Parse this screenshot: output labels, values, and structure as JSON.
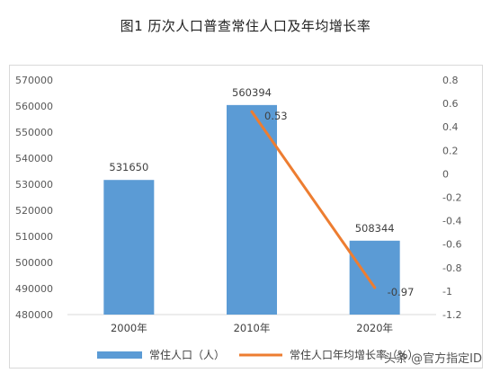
{
  "title": "图1  历次人口普查常住人口及年均增长率",
  "watermark": "头条 @官方指定ID",
  "chart_data": {
    "type": "bar",
    "categories": [
      "2000年",
      "2010年",
      "2020年"
    ],
    "series": [
      {
        "name": "常住人口（人）",
        "type": "bar",
        "axis": "left",
        "values": [
          531650,
          560394,
          508344
        ],
        "labels": [
          "531650",
          "560394",
          "508344"
        ],
        "color": "#5b9bd5"
      },
      {
        "name": "常住人口年均增长率（%）",
        "type": "line",
        "axis": "right",
        "values": [
          null,
          0.53,
          -0.97
        ],
        "labels": [
          "",
          "0.53",
          "-0.97"
        ],
        "color": "#ed7d31"
      }
    ],
    "y_left": {
      "ylim": [
        480000,
        570000
      ],
      "ticks": [
        "480000",
        "490000",
        "500000",
        "510000",
        "520000",
        "530000",
        "540000",
        "550000",
        "560000",
        "570000"
      ]
    },
    "y_right": {
      "ylim": [
        -1.2,
        0.8
      ],
      "ticks": [
        "-1.2",
        "-1",
        "-0.8",
        "-0.6",
        "-0.4",
        "-0.2",
        "0",
        "0.2",
        "0.4",
        "0.6",
        "0.8"
      ]
    },
    "legend": "bottom",
    "grid": false
  }
}
